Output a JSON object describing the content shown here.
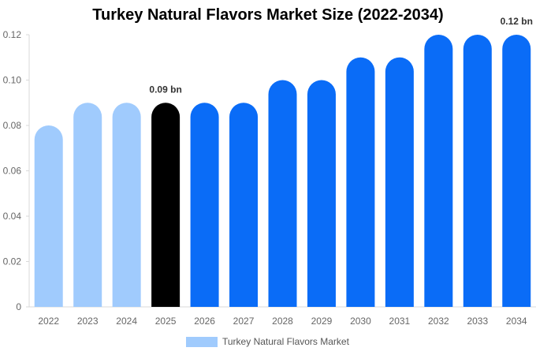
{
  "chart_data": {
    "type": "bar",
    "title": "Turkey Natural Flavors Market Size (2022-2034)",
    "categories": [
      "2022",
      "2023",
      "2024",
      "2025",
      "2026",
      "2027",
      "2028",
      "2029",
      "2030",
      "2031",
      "2032",
      "2033",
      "2034"
    ],
    "series": [
      {
        "name": "Turkey Natural Flavors Market",
        "values": [
          0.08,
          0.09,
          0.09,
          0.09,
          0.09,
          0.09,
          0.1,
          0.1,
          0.11,
          0.11,
          0.12,
          0.12,
          0.12
        ]
      }
    ],
    "ylim": [
      0,
      0.12
    ],
    "yticks": [
      "0",
      "0.02",
      "0.04",
      "0.06",
      "0.08",
      "0.10",
      "0.12"
    ],
    "annotations": [
      {
        "category": "2025",
        "text": "0.09 bn"
      },
      {
        "category": "2034",
        "text": "0.12 bn"
      }
    ],
    "colors": {
      "historical": "#a0cbfd",
      "current": "#000000",
      "forecast": "#0a6cf7",
      "legend": "#a0cbfd"
    },
    "bar_color_groups": [
      "historical",
      "historical",
      "historical",
      "current",
      "forecast",
      "forecast",
      "forecast",
      "forecast",
      "forecast",
      "forecast",
      "forecast",
      "forecast",
      "forecast"
    ],
    "legend": "bottom-center",
    "grid": false
  }
}
